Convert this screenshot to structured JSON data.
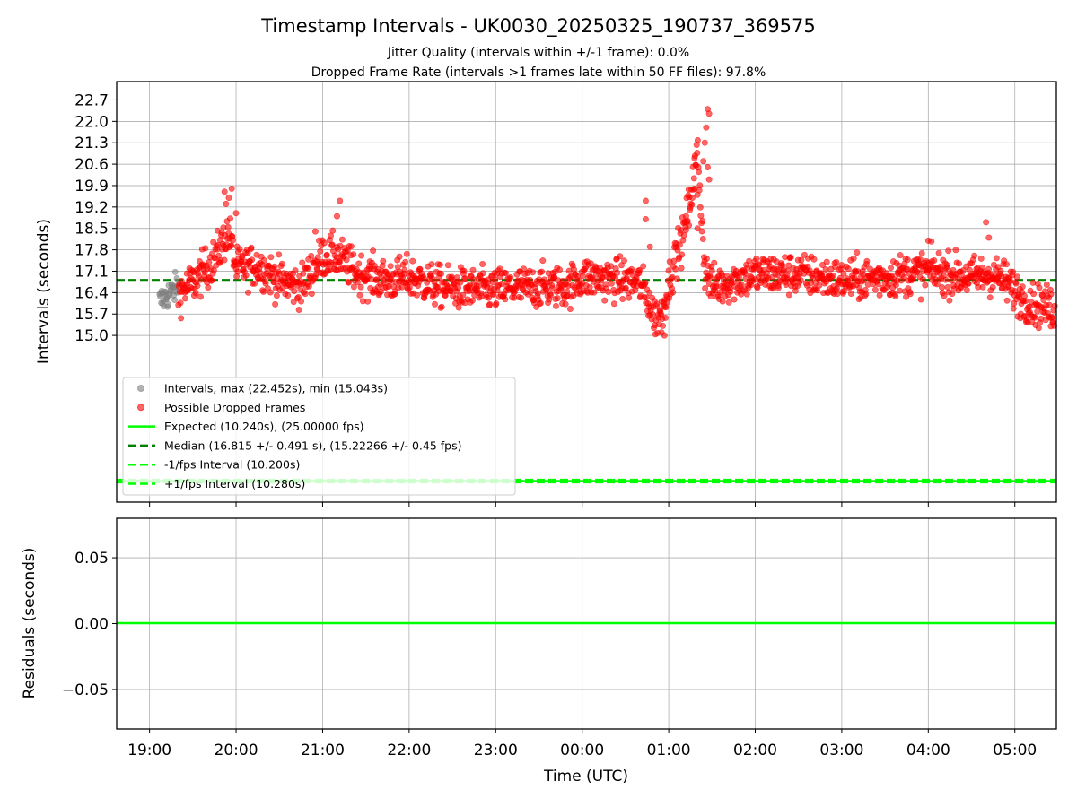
{
  "chart_data": [
    {
      "type": "scatter",
      "title": "Timestamp Intervals - UK0030_20250325_190737_369575",
      "subtitle_lines": [
        "Jitter Quality (intervals within +/-1 frame): 0.0%",
        "Dropped Frame Rate (intervals >1 frames late within 50 FF files): 97.8%"
      ],
      "ylabel": "Intervals (seconds)",
      "x_ticks": [
        "19:00",
        "20:00",
        "21:00",
        "22:00",
        "23:00",
        "00:00",
        "01:00",
        "02:00",
        "03:00",
        "04:00",
        "05:00"
      ],
      "x_range_hours_from_19": [
        -0.38,
        10.48
      ],
      "y_ticks": [
        "15.0",
        "15.7",
        "16.4",
        "17.1",
        "17.8",
        "18.5",
        "19.2",
        "19.9",
        "20.6",
        "21.3",
        "22.0",
        "22.7"
      ],
      "ylim": [
        9.55,
        23.3
      ],
      "grid": true,
      "legend_placement": "lower-left",
      "legend": [
        {
          "label": "Intervals, max (22.452s), min (15.043s)",
          "kind": "marker",
          "color": "#808080"
        },
        {
          "label": "Possible Dropped Frames",
          "kind": "marker",
          "color": "#ff0000"
        },
        {
          "label": "Expected (10.240s), (25.00000 fps)",
          "kind": "line",
          "color": "#00ff00",
          "dash": "solid"
        },
        {
          "label": "Median (16.815 +/- 0.491 s), (15.22266 +/- 0.45 fps)",
          "kind": "line",
          "color": "#008000",
          "dash": "dashed"
        },
        {
          "label": "-1/fps Interval (10.200s)",
          "kind": "line",
          "color": "#00ff00",
          "dash": "dashed"
        },
        {
          "label": "+1/fps Interval (10.280s)",
          "kind": "line",
          "color": "#00ff00",
          "dash": "dashed"
        }
      ],
      "reference_lines": {
        "expected": 10.24,
        "median": 16.815,
        "minus_one_fps": 10.2,
        "plus_one_fps": 10.28
      },
      "series": [
        {
          "name": "Intervals, max (22.452s), min (15.043s)",
          "color": "#808080",
          "time_range": [
            "19:07",
            "19:20"
          ],
          "trend": [
            [
              "19:07",
              16.1
            ],
            [
              "19:13",
              16.35
            ],
            [
              "19:20",
              16.6
            ]
          ],
          "spread": 0.25
        },
        {
          "name": "Possible Dropped Frames",
          "color": "#ff0000",
          "time_range": [
            "19:20",
            "05:28"
          ],
          "trend": [
            [
              "19:20",
              16.4
            ],
            [
              "19:30",
              16.7
            ],
            [
              "19:45",
              17.5
            ],
            [
              "19:55",
              18.4
            ],
            [
              "20:00",
              17.2
            ],
            [
              "20:15",
              17.3
            ],
            [
              "20:30",
              16.8
            ],
            [
              "20:45",
              16.6
            ],
            [
              "21:00",
              17.6
            ],
            [
              "21:10",
              17.6
            ],
            [
              "21:25",
              17.0
            ],
            [
              "21:45",
              16.8
            ],
            [
              "22:00",
              16.9
            ],
            [
              "22:20",
              16.6
            ],
            [
              "22:40",
              16.5
            ],
            [
              "23:00",
              16.5
            ],
            [
              "23:30",
              16.6
            ],
            [
              "23:50",
              16.6
            ],
            [
              "00:00",
              16.9
            ],
            [
              "00:30",
              16.8
            ],
            [
              "00:40",
              16.7
            ],
            [
              "00:45",
              16.3
            ],
            [
              "00:50",
              15.6
            ],
            [
              "00:55",
              15.7
            ],
            [
              "01:00",
              16.7
            ],
            [
              "01:05",
              17.6
            ],
            [
              "01:10",
              18.2
            ],
            [
              "01:15",
              19.5
            ],
            [
              "01:20",
              21.0
            ],
            [
              "01:25",
              17.2
            ],
            [
              "01:30",
              16.6
            ],
            [
              "02:00",
              17.0
            ],
            [
              "02:30",
              17.0
            ],
            [
              "03:00",
              16.8
            ],
            [
              "03:30",
              16.9
            ],
            [
              "04:00",
              17.1
            ],
            [
              "04:30",
              16.9
            ],
            [
              "04:45",
              17.0
            ],
            [
              "04:55",
              16.7
            ],
            [
              "05:05",
              16.2
            ],
            [
              "05:15",
              16.0
            ],
            [
              "05:28",
              15.9
            ]
          ],
          "spread": 0.35,
          "spikes": [
            [
              "19:52",
              19.7
            ],
            [
              "19:55",
              19.5
            ],
            [
              "19:57",
              19.8
            ],
            [
              "19:53",
              19.3
            ],
            [
              "20:00",
              19.0
            ],
            [
              "21:12",
              19.4
            ],
            [
              "21:10",
              18.9
            ],
            [
              "20:55",
              18.4
            ],
            [
              "00:44",
              19.4
            ],
            [
              "00:44",
              18.8
            ],
            [
              "00:47",
              17.9
            ],
            [
              "00:55",
              15.1
            ],
            [
              "00:57",
              15.0
            ],
            [
              "01:12",
              18.9
            ],
            [
              "01:14",
              18.6
            ],
            [
              "01:18",
              19.8
            ],
            [
              "01:20",
              19.6
            ],
            [
              "01:24",
              20.7
            ],
            [
              "01:25",
              21.3
            ],
            [
              "01:26",
              21.8
            ],
            [
              "01:27",
              22.4
            ],
            [
              "01:28",
              22.25
            ],
            [
              "01:27",
              20.5
            ],
            [
              "01:28",
              20.1
            ],
            [
              "01:20",
              18.5
            ],
            [
              "04:40",
              18.7
            ],
            [
              "04:42",
              18.2
            ],
            [
              "04:00",
              18.1
            ],
            [
              "05:25",
              15.3
            ]
          ]
        }
      ]
    },
    {
      "type": "line",
      "ylabel": "Residuals (seconds)",
      "xlabel": "Time (UTC)",
      "x_ticks": [
        "19:00",
        "20:00",
        "21:00",
        "22:00",
        "23:00",
        "00:00",
        "01:00",
        "02:00",
        "03:00",
        "04:00",
        "05:00"
      ],
      "y_ticks": [
        "0.05",
        "0.00",
        "−0.05"
      ],
      "y_tick_values": [
        0.05,
        0.0,
        -0.05
      ],
      "ylim": [
        -0.08,
        0.08
      ],
      "grid": true,
      "series": [
        {
          "color": "#00ff00",
          "y": 0.0
        }
      ]
    }
  ]
}
